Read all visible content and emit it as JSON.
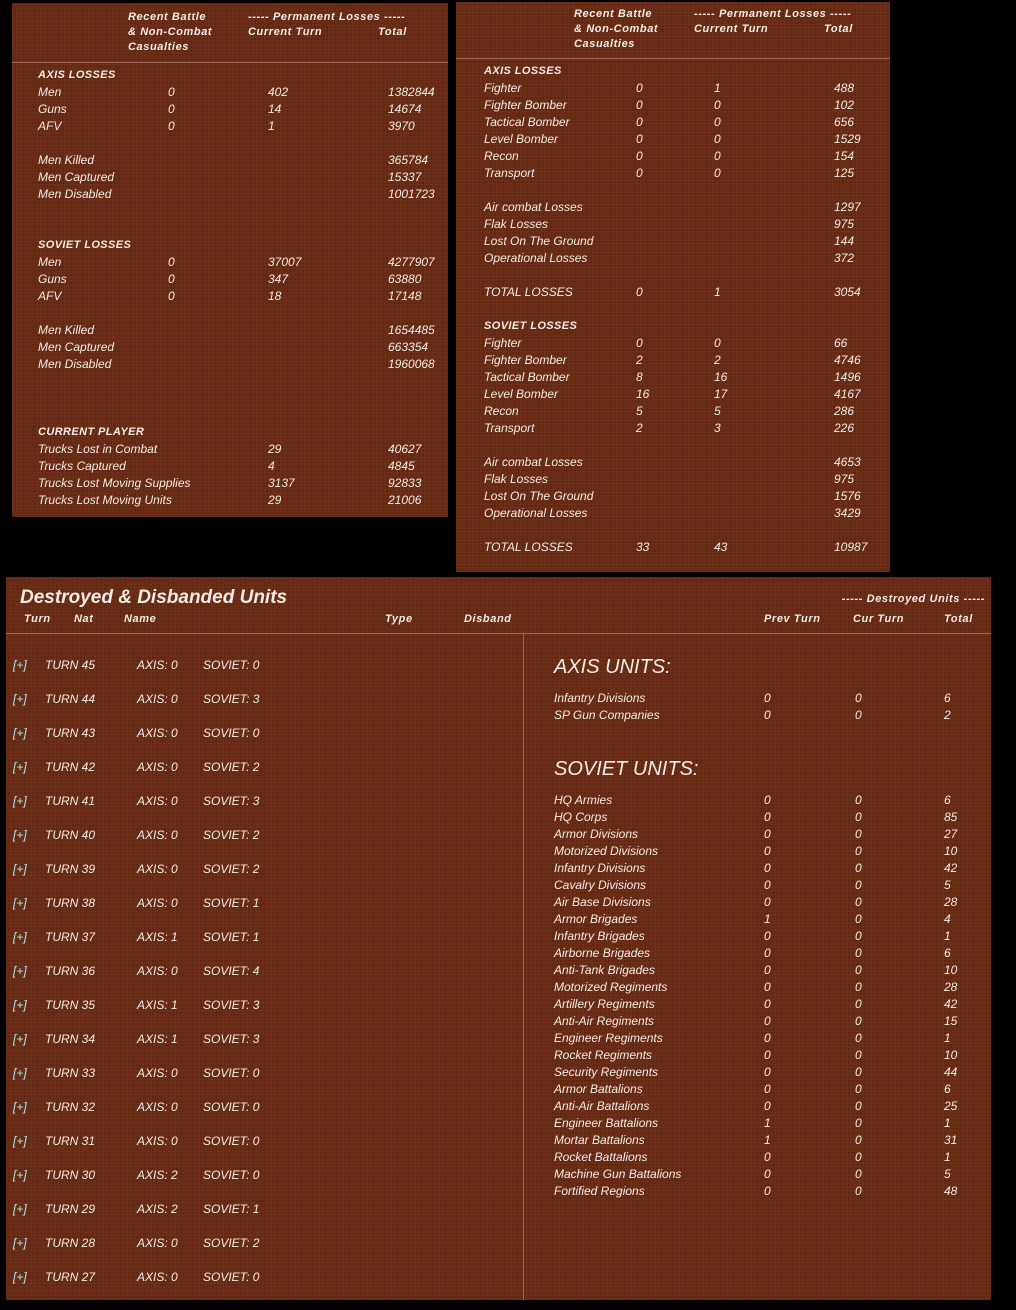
{
  "colors": {
    "panel": "#672a15",
    "text": "#f4ece6",
    "expand": "#aee8ee",
    "line": "#9a6a55"
  },
  "ground": {
    "header": {
      "recent1": "Recent Battle",
      "recent2": "& Non-Combat",
      "recent3": "Casualties",
      "permanent": "----- Permanent Losses -----",
      "current_turn": "Current Turn",
      "total": "Total"
    },
    "sections": [
      {
        "title": "AXIS LOSSES",
        "groups": [
          [
            [
              "Men",
              "0",
              "402",
              "1382844"
            ],
            [
              "Guns",
              "0",
              "14",
              "14674"
            ],
            [
              "AFV",
              "0",
              "1",
              "3970"
            ]
          ],
          [
            [
              "Men Killed",
              "",
              "",
              "365784"
            ],
            [
              "Men Captured",
              "",
              "",
              "15337"
            ],
            [
              "Men Disabled",
              "",
              "",
              "1001723"
            ]
          ]
        ]
      },
      {
        "title": "SOVIET LOSSES",
        "groups": [
          [
            [
              "Men",
              "0",
              "37007",
              "4277907"
            ],
            [
              "Guns",
              "0",
              "347",
              "63880"
            ],
            [
              "AFV",
              "0",
              "18",
              "17148"
            ]
          ],
          [
            [
              "Men Killed",
              "",
              "",
              "1654485"
            ],
            [
              "Men Captured",
              "",
              "",
              "663354"
            ],
            [
              "Men Disabled",
              "",
              "",
              "1960068"
            ]
          ]
        ]
      },
      {
        "title": "CURRENT PLAYER",
        "groups": [
          [
            [
              "Trucks Lost in Combat",
              "",
              "29",
              "40627"
            ],
            [
              "Trucks Captured",
              "",
              "4",
              "4845"
            ],
            [
              "Trucks Lost Moving Supplies",
              "",
              "3137",
              "92833"
            ],
            [
              "Trucks Lost Moving Units",
              "",
              "29",
              "21006"
            ]
          ]
        ]
      }
    ]
  },
  "air": {
    "header": {
      "recent1": "Recent Battle",
      "recent2": "& Non-Combat",
      "recent3": "Casualties",
      "permanent": "----- Permanent Losses -----",
      "current_turn": "Current Turn",
      "total": "Total"
    },
    "sections": [
      {
        "title": "AXIS LOSSES",
        "groups": [
          [
            [
              "Fighter",
              "0",
              "1",
              "488"
            ],
            [
              "Fighter Bomber",
              "0",
              "0",
              "102"
            ],
            [
              "Tactical Bomber",
              "0",
              "0",
              "656"
            ],
            [
              "Level Bomber",
              "0",
              "0",
              "1529"
            ],
            [
              "Recon",
              "0",
              "0",
              "154"
            ],
            [
              "Transport",
              "0",
              "0",
              "125"
            ]
          ],
          [
            [
              "Air combat Losses",
              "",
              "",
              "1297"
            ],
            [
              "Flak Losses",
              "",
              "",
              "975"
            ],
            [
              "Lost On The Ground",
              "",
              "",
              "144"
            ],
            [
              "Operational Losses",
              "",
              "",
              "372"
            ]
          ],
          [
            [
              "TOTAL LOSSES",
              "0",
              "1",
              "3054"
            ]
          ]
        ]
      },
      {
        "title": "SOVIET LOSSES",
        "groups": [
          [
            [
              "Fighter",
              "0",
              "0",
              "66"
            ],
            [
              "Fighter Bomber",
              "2",
              "2",
              "4746"
            ],
            [
              "Tactical Bomber",
              "8",
              "16",
              "1496"
            ],
            [
              "Level Bomber",
              "16",
              "17",
              "4167"
            ],
            [
              "Recon",
              "5",
              "5",
              "286"
            ],
            [
              "Transport",
              "2",
              "3",
              "226"
            ]
          ],
          [
            [
              "Air combat Losses",
              "",
              "",
              "4653"
            ],
            [
              "Flak Losses",
              "",
              "",
              "975"
            ],
            [
              "Lost On The Ground",
              "",
              "",
              "1576"
            ],
            [
              "Operational Losses",
              "",
              "",
              "3429"
            ]
          ],
          [
            [
              "TOTAL LOSSES",
              "33",
              "43",
              "10987"
            ]
          ]
        ]
      }
    ]
  },
  "units": {
    "title": "Destroyed & Disbanded Units",
    "columns": {
      "turn": "Turn",
      "nat": "Nat",
      "name": "Name",
      "type": "Type",
      "disband": "Disband",
      "destroyed": "----- Destroyed Units -----",
      "prev_turn": "Prev Turn",
      "cur_turn": "Cur Turn",
      "total": "Total"
    },
    "expand_label": "[+]",
    "turns": [
      {
        "turn": "TURN 45",
        "axis": "AXIS: 0",
        "soviet": "SOVIET: 0"
      },
      {
        "turn": "TURN 44",
        "axis": "AXIS: 0",
        "soviet": "SOVIET: 3"
      },
      {
        "turn": "TURN 43",
        "axis": "AXIS: 0",
        "soviet": "SOVIET: 0"
      },
      {
        "turn": "TURN 42",
        "axis": "AXIS: 0",
        "soviet": "SOVIET: 2"
      },
      {
        "turn": "TURN 41",
        "axis": "AXIS: 0",
        "soviet": "SOVIET: 3"
      },
      {
        "turn": "TURN 40",
        "axis": "AXIS: 0",
        "soviet": "SOVIET: 2"
      },
      {
        "turn": "TURN 39",
        "axis": "AXIS: 0",
        "soviet": "SOVIET: 2"
      },
      {
        "turn": "TURN 38",
        "axis": "AXIS: 0",
        "soviet": "SOVIET: 1"
      },
      {
        "turn": "TURN 37",
        "axis": "AXIS: 1",
        "soviet": "SOVIET: 1"
      },
      {
        "turn": "TURN 36",
        "axis": "AXIS: 0",
        "soviet": "SOVIET: 4"
      },
      {
        "turn": "TURN 35",
        "axis": "AXIS: 1",
        "soviet": "SOVIET: 3"
      },
      {
        "turn": "TURN 34",
        "axis": "AXIS: 1",
        "soviet": "SOVIET: 3"
      },
      {
        "turn": "TURN 33",
        "axis": "AXIS: 0",
        "soviet": "SOVIET: 0"
      },
      {
        "turn": "TURN 32",
        "axis": "AXIS: 0",
        "soviet": "SOVIET: 0"
      },
      {
        "turn": "TURN 31",
        "axis": "AXIS: 0",
        "soviet": "SOVIET: 0"
      },
      {
        "turn": "TURN 30",
        "axis": "AXIS: 2",
        "soviet": "SOVIET: 0"
      },
      {
        "turn": "TURN 29",
        "axis": "AXIS: 2",
        "soviet": "SOVIET: 1"
      },
      {
        "turn": "TURN 28",
        "axis": "AXIS: 0",
        "soviet": "SOVIET: 2"
      },
      {
        "turn": "TURN 27",
        "axis": "AXIS: 0",
        "soviet": "SOVIET: 0"
      }
    ],
    "axis_title": "AXIS UNITS:",
    "axis_units": [
      [
        "Infantry Divisions",
        "0",
        "0",
        "6"
      ],
      [
        "SP Gun Companies",
        "0",
        "0",
        "2"
      ]
    ],
    "soviet_title": "SOVIET UNITS:",
    "soviet_units": [
      [
        "HQ Armies",
        "0",
        "0",
        "6"
      ],
      [
        "HQ Corps",
        "0",
        "0",
        "85"
      ],
      [
        "Armor Divisions",
        "0",
        "0",
        "27"
      ],
      [
        "Motorized Divisions",
        "0",
        "0",
        "10"
      ],
      [
        "Infantry Divisions",
        "0",
        "0",
        "42"
      ],
      [
        "Cavalry Divisions",
        "0",
        "0",
        "5"
      ],
      [
        "Air Base Divisions",
        "0",
        "0",
        "28"
      ],
      [
        "Armor Brigades",
        "1",
        "0",
        "4"
      ],
      [
        "Infantry Brigades",
        "0",
        "0",
        "1"
      ],
      [
        "Airborne Brigades",
        "0",
        "0",
        "6"
      ],
      [
        "Anti-Tank Brigades",
        "0",
        "0",
        "10"
      ],
      [
        "Motorized Regiments",
        "0",
        "0",
        "28"
      ],
      [
        "Artillery Regiments",
        "0",
        "0",
        "42"
      ],
      [
        "Anti-Air Regiments",
        "0",
        "0",
        "15"
      ],
      [
        "Engineer Regiments",
        "0",
        "0",
        "1"
      ],
      [
        "Rocket Regiments",
        "0",
        "0",
        "10"
      ],
      [
        "Security Regiments",
        "0",
        "0",
        "44"
      ],
      [
        "Armor Battalions",
        "0",
        "0",
        "6"
      ],
      [
        "Anti-Air Battalions",
        "0",
        "0",
        "25"
      ],
      [
        "Engineer Battalions",
        "1",
        "0",
        "1"
      ],
      [
        "Mortar Battalions",
        "1",
        "0",
        "31"
      ],
      [
        "Rocket Battalions",
        "0",
        "0",
        "1"
      ],
      [
        "Machine Gun Battalions",
        "0",
        "0",
        "5"
      ],
      [
        "Fortified Regions",
        "0",
        "0",
        "48"
      ]
    ]
  }
}
